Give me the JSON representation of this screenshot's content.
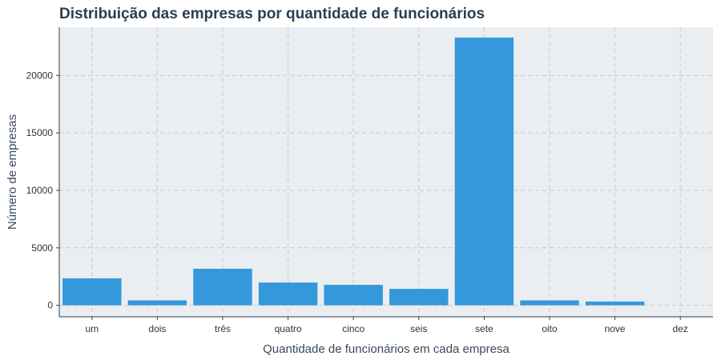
{
  "chart_data": {
    "type": "bar",
    "title": "Distribuição das empresas por quantidade de funcionários",
    "xlabel": "Quantidade de funcionários em cada empresa",
    "ylabel": "Número de empresas",
    "categories": [
      "um",
      "dois",
      "três",
      "quatro",
      "cinco",
      "seis",
      "sete",
      "oito",
      "nove",
      "dez"
    ],
    "values": [
      2350,
      430,
      3180,
      1980,
      1780,
      1430,
      23300,
      430,
      330,
      0
    ],
    "ylim": [
      -1000,
      24200
    ],
    "yticks": [
      0,
      5000,
      10000,
      15000,
      20000
    ],
    "ytick_labels": [
      "0",
      "5000",
      "10000",
      "15000",
      "20000"
    ],
    "grid": true,
    "colors": {
      "bar": "#3598dc",
      "panel": "#ebeef0",
      "grid": "#c6c9cc",
      "axis": "#2c3e50",
      "title": "#2c3e50"
    }
  }
}
